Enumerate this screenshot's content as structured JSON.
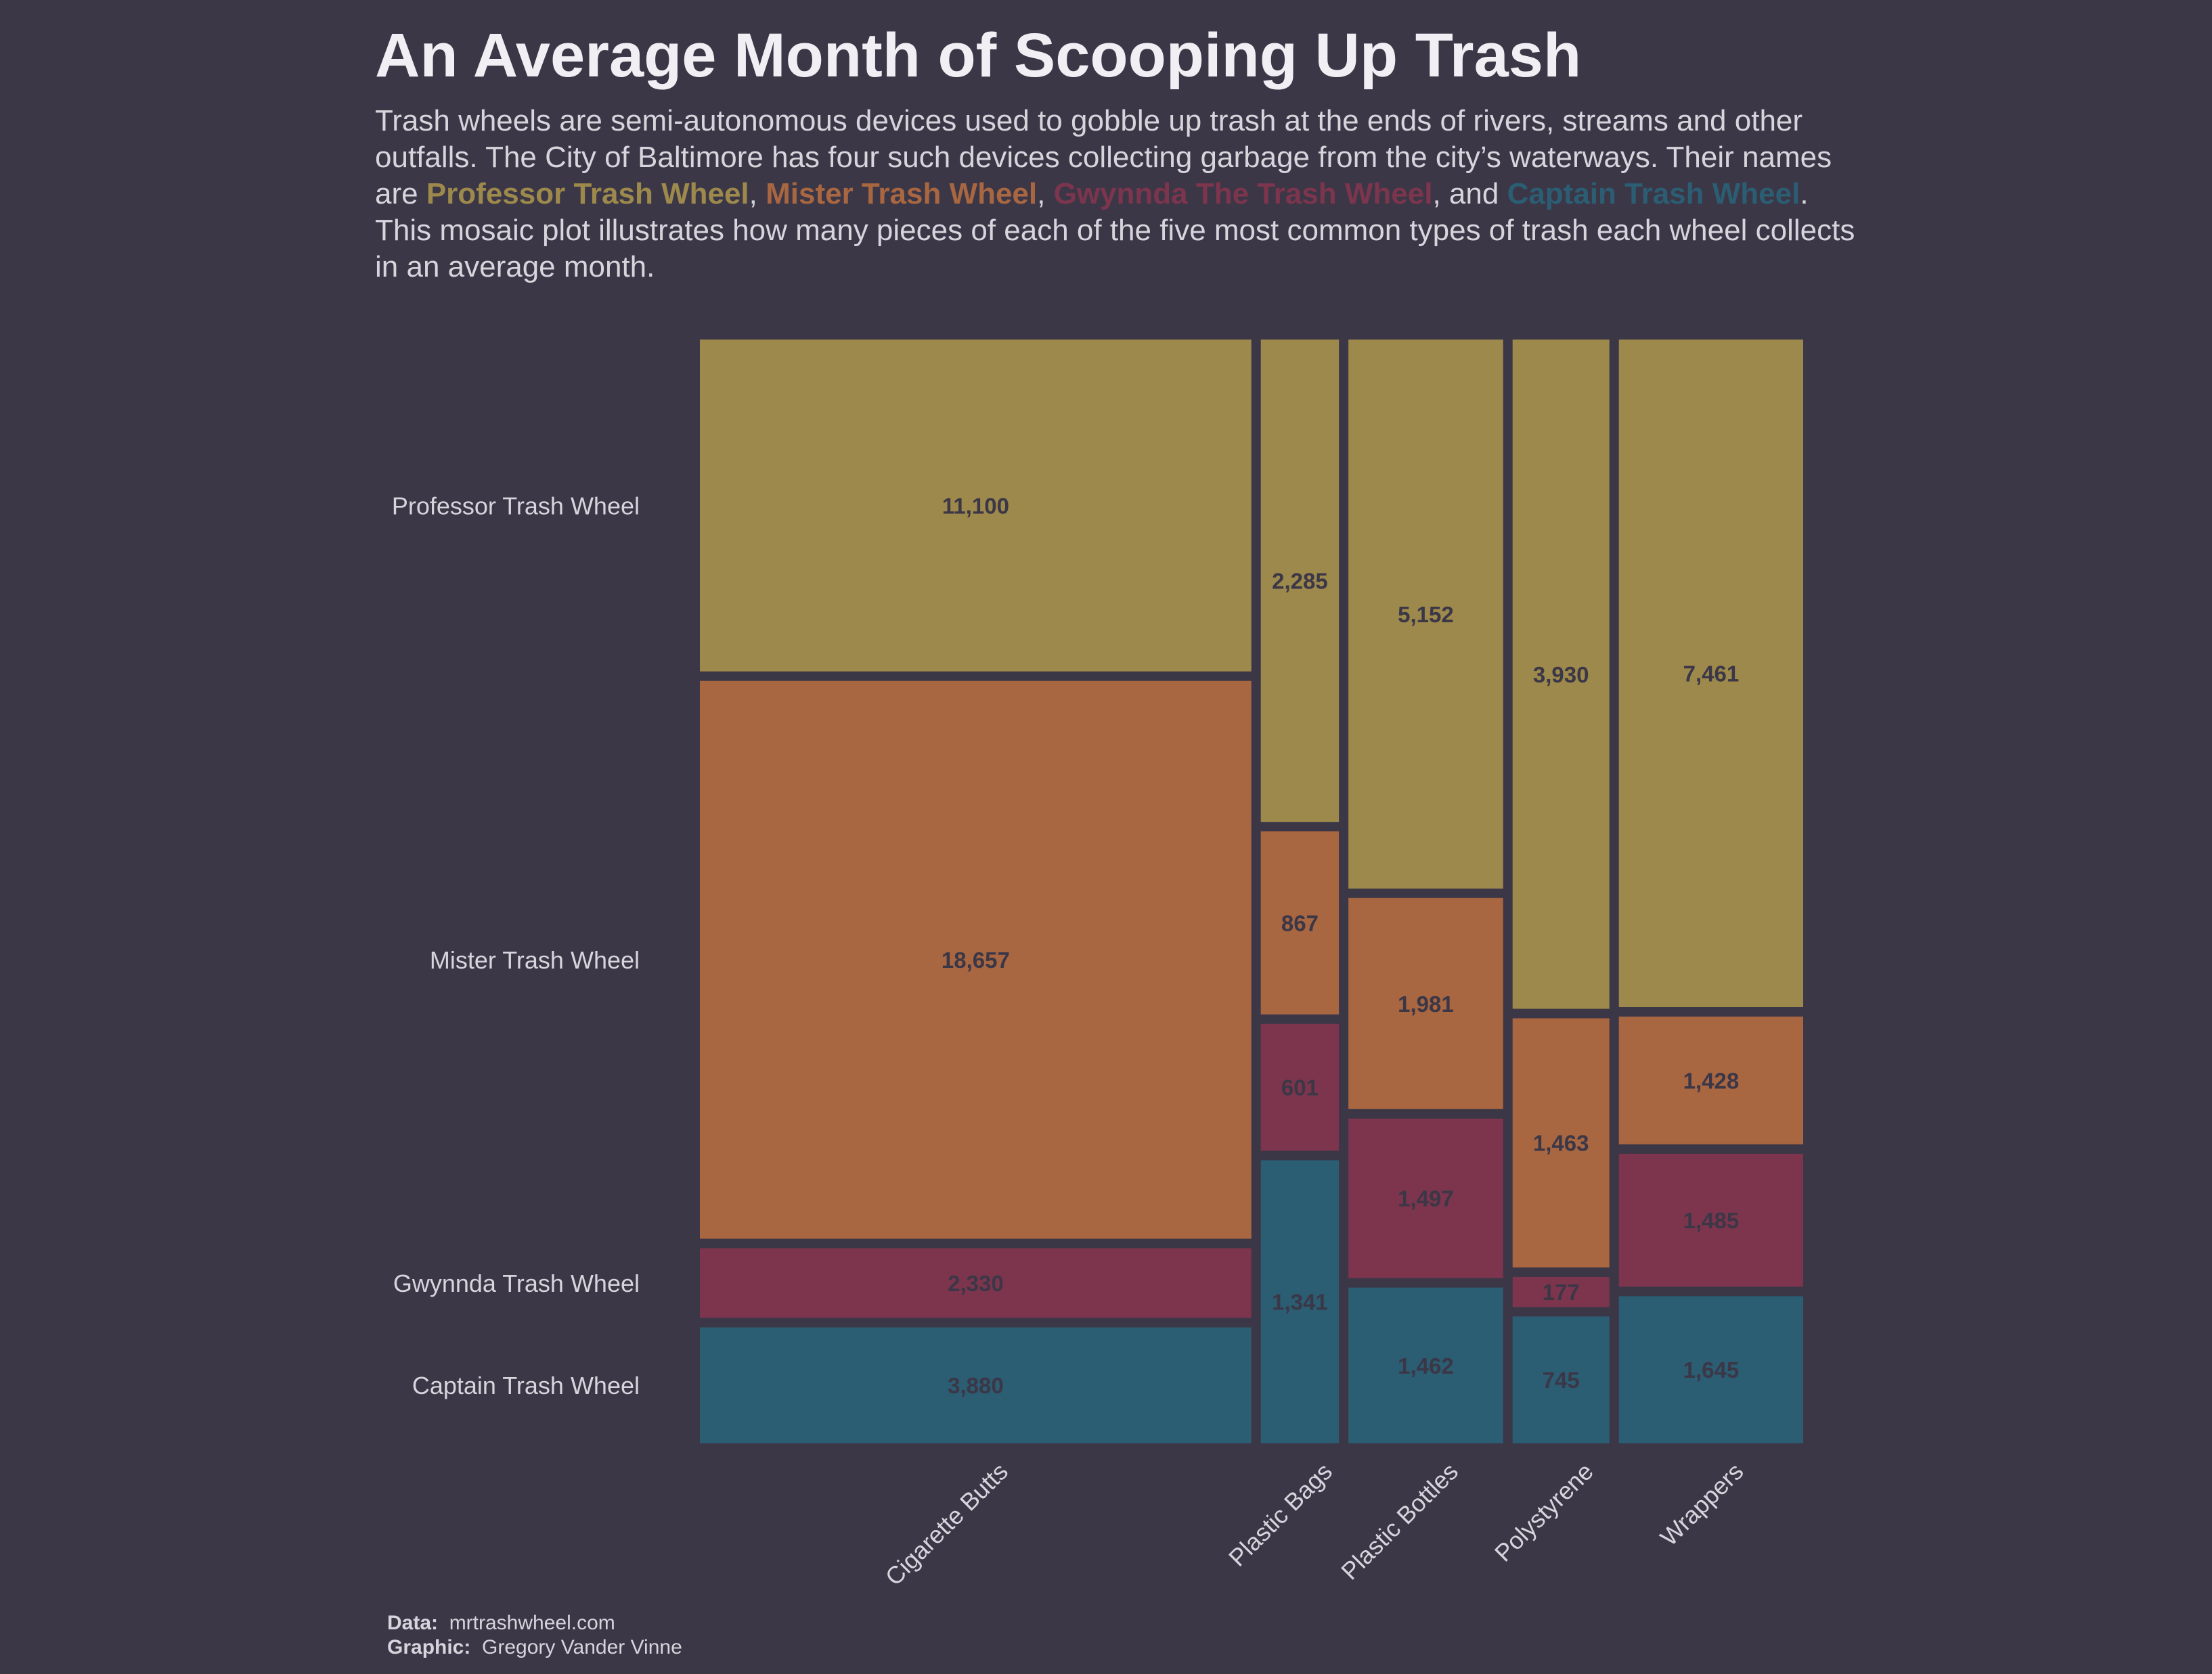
{
  "title": "An Average Month of Scooping Up Trash",
  "subtitle": {
    "intro": "Trash wheels are semi-autonomous devices used to gobble up trash at the ends of rivers, streams and other outfalls. The City of Baltimore has four such devices collecting garbage from the city’s waterways. Their names are ",
    "name1": "Professor Trash Wheel",
    "sep1": ", ",
    "name2": "Mister Trash Wheel",
    "sep2": ", ",
    "name3": "Gwynnda The Trash Wheel",
    "sep3": ", and ",
    "name4": "Captain Trash Wheel",
    "outro": ". This mosaic plot illustrates how many pieces of each of the five most common types of trash each wheel collects in an average month."
  },
  "colors": {
    "background": "#3b3747",
    "Professor Trash Wheel": "#9d894b",
    "Mister Trash Wheel": "#a86641",
    "Gwynnda Trash Wheel": "#7c354d",
    "Captain Trash Wheel": "#2b5d73"
  },
  "caption": {
    "data_label": "Data:",
    "data_value": "mrtrashwheel.com",
    "graphic_label": "Graphic:",
    "graphic_value": "Gregory Vander Vinne"
  },
  "chart_data": {
    "type": "mosaic",
    "categories": [
      "Cigarette Butts",
      "Plastic Bags",
      "Plastic Bottles",
      "Polystyrene",
      "Wrappers"
    ],
    "row_labels": [
      "Professor Trash Wheel",
      "Mister Trash Wheel",
      "Gwynnda Trash Wheel",
      "Captain Trash Wheel"
    ],
    "series": [
      {
        "name": "Professor Trash Wheel",
        "values": [
          11100,
          2285,
          5152,
          3930,
          7461
        ]
      },
      {
        "name": "Mister Trash Wheel",
        "values": [
          18657,
          867,
          1981,
          1463,
          1428
        ]
      },
      {
        "name": "Gwynnda Trash Wheel",
        "values": [
          2330,
          601,
          1497,
          177,
          1485
        ]
      },
      {
        "name": "Captain Trash Wheel",
        "values": [
          3880,
          1341,
          1462,
          745,
          1645
        ]
      }
    ],
    "legend": "none",
    "grid": false
  }
}
